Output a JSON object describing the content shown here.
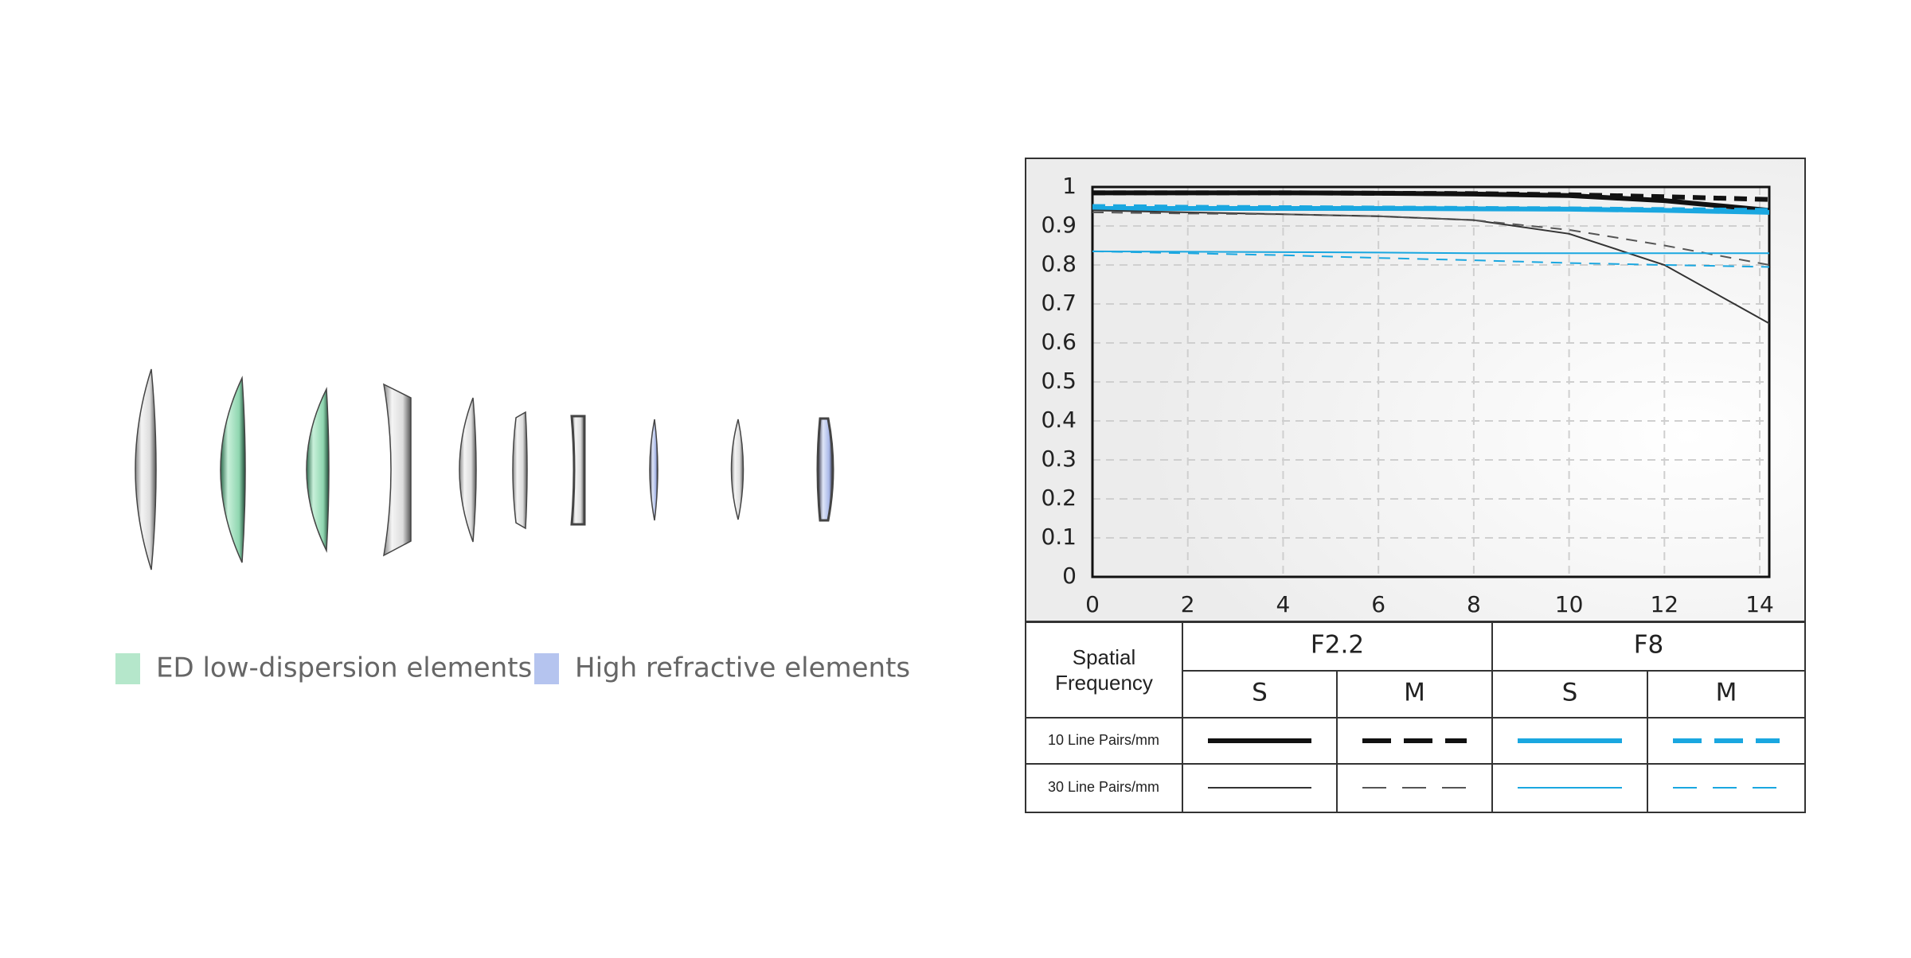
{
  "chart_data": {
    "type": "line",
    "x": [
      0,
      2,
      4,
      6,
      8,
      10,
      12,
      14.2
    ],
    "xlim": [
      0,
      14.2
    ],
    "xticks": [
      0,
      2,
      4,
      6,
      8,
      10,
      12,
      14
    ],
    "ylim": [
      0,
      1
    ],
    "yticks": [
      0,
      0.1,
      0.2,
      0.3,
      0.4,
      0.5,
      0.6,
      0.7,
      0.8,
      0.9,
      1
    ],
    "grid": true,
    "series": [
      {
        "color": "#111111",
        "weight": "thick",
        "style": "solid",
        "values": [
          0.985,
          0.985,
          0.985,
          0.984,
          0.982,
          0.978,
          0.965,
          0.94
        ]
      },
      {
        "color": "#111111",
        "weight": "thick",
        "style": "dashed",
        "values": [
          0.985,
          0.985,
          0.985,
          0.984,
          0.983,
          0.98,
          0.975,
          0.968
        ]
      },
      {
        "color": "#1aa7e0",
        "weight": "thick",
        "style": "solid",
        "values": [
          0.945,
          0.945,
          0.945,
          0.945,
          0.944,
          0.943,
          0.94,
          0.935
        ]
      },
      {
        "color": "#1aa7e0",
        "weight": "thick",
        "style": "dashed",
        "values": [
          0.95,
          0.948,
          0.947,
          0.946,
          0.945,
          0.944,
          0.942,
          0.94
        ]
      },
      {
        "color": "#333333",
        "weight": "thin",
        "style": "solid",
        "values": [
          0.94,
          0.935,
          0.93,
          0.925,
          0.915,
          0.88,
          0.8,
          0.65
        ]
      },
      {
        "color": "#555555",
        "weight": "thin",
        "style": "dashed",
        "values": [
          0.935,
          0.932,
          0.93,
          0.925,
          0.915,
          0.89,
          0.85,
          0.8
        ]
      },
      {
        "color": "#1aa7e0",
        "weight": "thin",
        "style": "solid",
        "values": [
          0.835,
          0.834,
          0.833,
          0.832,
          0.83,
          0.83,
          0.83,
          0.83
        ]
      },
      {
        "color": "#1aa7e0",
        "weight": "thin",
        "style": "dashed",
        "values": [
          0.835,
          0.83,
          0.825,
          0.818,
          0.812,
          0.805,
          0.8,
          0.795
        ]
      }
    ]
  },
  "legend_table": {
    "header": "Spatial Frequency",
    "groups": [
      "F2.2",
      "F8"
    ],
    "columns": [
      "S",
      "M",
      "S",
      "M"
    ],
    "rows": [
      "10 Line Pairs/mm",
      "30 Line Pairs/mm"
    ]
  },
  "lens_legend": [
    {
      "label": "ED low-dispersion elements",
      "color": "#b5e7cb"
    },
    {
      "label": "High refractive elements",
      "color": "#b5c4ef"
    }
  ]
}
